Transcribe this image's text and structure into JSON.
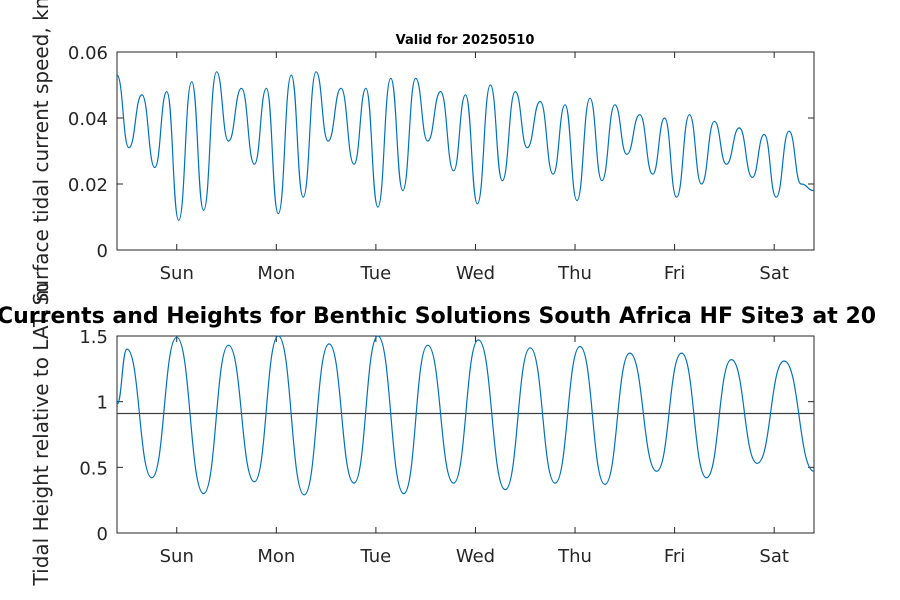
{
  "figure_title": "Currents and Heights for Benthic Solutions South Africa HF Site3 at 20",
  "chart_data": [
    {
      "type": "line",
      "title": "Valid for 20250510",
      "ylabel": "Surface tidal current speed, kn",
      "xlabel": "",
      "x_ticklabels": [
        "Sun",
        "Mon",
        "Tue",
        "Wed",
        "Thu",
        "Fri",
        "Sat"
      ],
      "x_range_days": [
        0,
        7
      ],
      "x_tick_positions_days": [
        0.6,
        1.6,
        2.6,
        3.6,
        4.6,
        5.6,
        6.6
      ],
      "ylim": [
        0,
        0.06
      ],
      "y_ticks": [
        0,
        0.02,
        0.04,
        0.06
      ],
      "y_ticklabels": [
        "0",
        "0.02",
        "0.04",
        "0.06"
      ],
      "line_color": "#0072BD",
      "x": [
        0.0,
        0.12,
        0.25,
        0.38,
        0.5,
        0.62,
        0.75,
        0.87,
        1.0,
        1.12,
        1.25,
        1.38,
        1.5,
        1.62,
        1.75,
        1.87,
        2.0,
        2.12,
        2.25,
        2.38,
        2.5,
        2.62,
        2.75,
        2.87,
        3.0,
        3.12,
        3.25,
        3.38,
        3.5,
        3.62,
        3.75,
        3.87,
        4.0,
        4.12,
        4.25,
        4.38,
        4.5,
        4.62,
        4.75,
        4.87,
        5.0,
        5.12,
        5.25,
        5.38,
        5.5,
        5.62,
        5.75,
        5.87,
        6.0,
        6.12,
        6.25,
        6.38,
        6.5,
        6.62,
        6.75,
        6.87,
        7.0
      ],
      "values": [
        0.053,
        0.031,
        0.047,
        0.025,
        0.048,
        0.009,
        0.051,
        0.012,
        0.054,
        0.033,
        0.049,
        0.026,
        0.049,
        0.011,
        0.053,
        0.016,
        0.054,
        0.033,
        0.049,
        0.026,
        0.049,
        0.013,
        0.052,
        0.018,
        0.052,
        0.033,
        0.048,
        0.024,
        0.047,
        0.014,
        0.05,
        0.021,
        0.048,
        0.031,
        0.045,
        0.023,
        0.044,
        0.015,
        0.046,
        0.021,
        0.044,
        0.029,
        0.041,
        0.023,
        0.04,
        0.016,
        0.041,
        0.02,
        0.039,
        0.026,
        0.037,
        0.022,
        0.035,
        0.016,
        0.036,
        0.02,
        0.018
      ],
      "series": [
        {
          "values_ref": "values"
        }
      ]
    },
    {
      "type": "line",
      "title": "",
      "ylabel": "Tidal Height relative to LAT, m",
      "xlabel": "",
      "x_ticklabels": [
        "Sun",
        "Mon",
        "Tue",
        "Wed",
        "Thu",
        "Fri",
        "Sat"
      ],
      "x_range_days": [
        0,
        7
      ],
      "x_tick_positions_days": [
        0.6,
        1.6,
        2.6,
        3.6,
        4.6,
        5.6,
        6.6
      ],
      "ylim": [
        0,
        1.5
      ],
      "y_ticks": [
        0,
        0.5,
        1,
        1.5
      ],
      "y_ticklabels": [
        "0",
        "0.5",
        "1",
        "1.5"
      ],
      "reference_line": 0.91,
      "reference_line_color": "#404040",
      "line_color": "#0072BD",
      "x": [
        0.0,
        0.1,
        0.35,
        0.6,
        0.87,
        1.12,
        1.38,
        1.62,
        1.88,
        2.13,
        2.38,
        2.62,
        2.88,
        3.12,
        3.38,
        3.63,
        3.9,
        4.15,
        4.4,
        4.65,
        4.9,
        5.15,
        5.42,
        5.67,
        5.92,
        6.17,
        6.43,
        6.7,
        7.0
      ],
      "values": [
        0.98,
        1.4,
        0.42,
        1.49,
        0.3,
        1.43,
        0.39,
        1.5,
        0.29,
        1.44,
        0.38,
        1.5,
        0.3,
        1.43,
        0.38,
        1.47,
        0.33,
        1.41,
        0.38,
        1.42,
        0.37,
        1.37,
        0.47,
        1.37,
        0.42,
        1.32,
        0.53,
        1.31,
        0.47
      ]
    }
  ]
}
